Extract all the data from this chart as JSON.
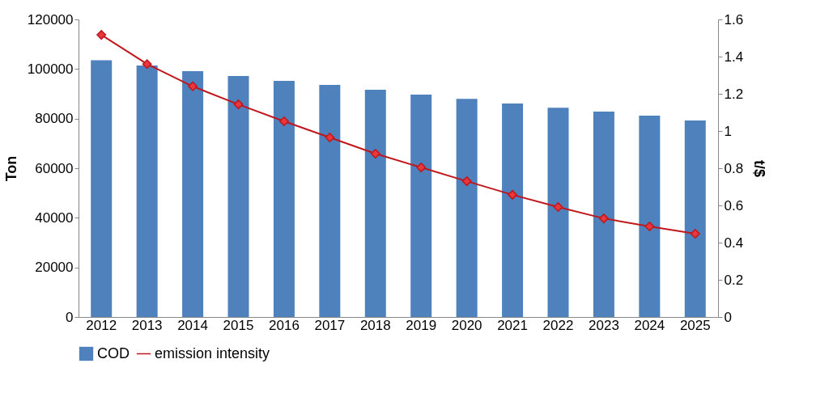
{
  "chart_data": {
    "type": "bar",
    "categories": [
      "2012",
      "2013",
      "2014",
      "2015",
      "2016",
      "2017",
      "2018",
      "2019",
      "2020",
      "2021",
      "2022",
      "2023",
      "2024",
      "2025"
    ],
    "series": [
      {
        "name": "COD",
        "color": "#4f81bd",
        "values": [
          103500,
          101400,
          99100,
          97200,
          95200,
          93600,
          91600,
          89700,
          88000,
          86100,
          84400,
          82800,
          81200,
          79200
        ]
      },
      {
        "name": "emission intensity",
        "type": "line",
        "axis": "y2",
        "color": "#c0171c",
        "marker": "diamond",
        "values": [
          1.517,
          1.36,
          1.24,
          1.143,
          1.052,
          0.965,
          0.878,
          0.804,
          0.73,
          0.657,
          0.591,
          0.53,
          0.487,
          0.448
        ]
      }
    ],
    "ylabel": "Ton",
    "y2label": "t/$",
    "ylim": [
      0,
      120000
    ],
    "yticks": [
      0,
      20000,
      40000,
      60000,
      80000,
      100000,
      120000
    ],
    "y2lim": [
      0,
      1.6
    ],
    "y2ticks": [
      0,
      {
        "value": 0.2,
        "label": "0.2"
      },
      {
        "value": 0.4,
        "label": "0.4"
      },
      {
        "value": 0.6,
        "label": "0.6"
      },
      {
        "value": 0.8,
        "label": "0.8"
      },
      1,
      {
        "value": 1.2,
        "label": "1.2"
      },
      {
        "value": 1.4,
        "label": "1.4"
      },
      {
        "value": 1.6,
        "label": "1.6"
      }
    ],
    "grid": false,
    "legend": "bottom"
  }
}
